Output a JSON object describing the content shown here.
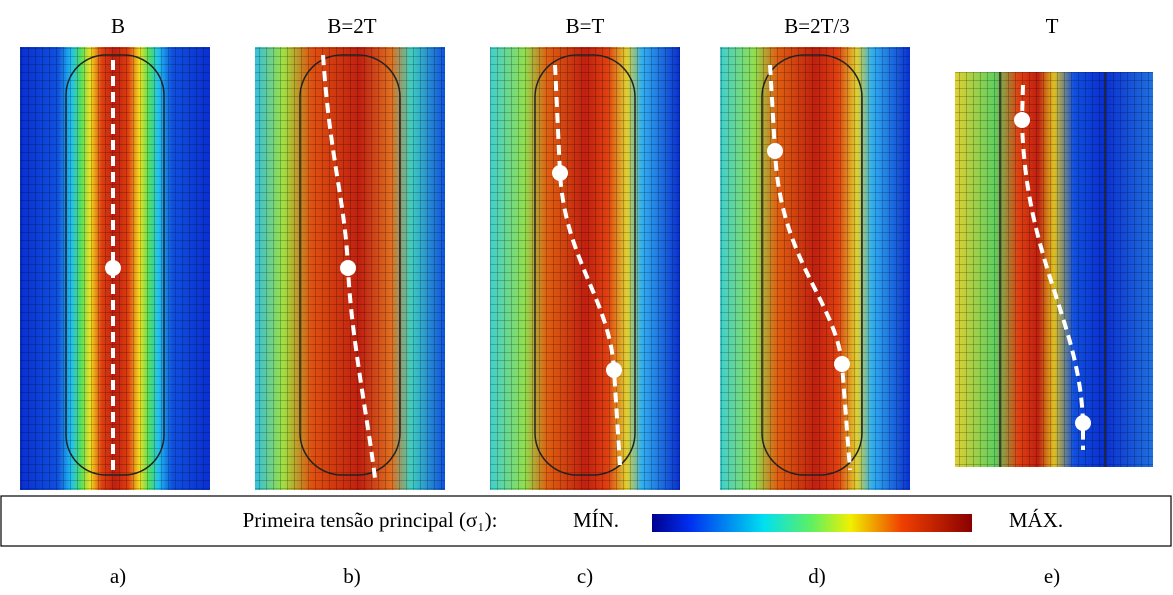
{
  "panels": [
    {
      "title": "B",
      "caption": "a)"
    },
    {
      "title": "B=2T",
      "caption": "b)"
    },
    {
      "title": "B=T",
      "caption": "c)"
    },
    {
      "title": "B=2T/3",
      "caption": "d)"
    },
    {
      "title": "T",
      "caption": "e)"
    }
  ],
  "legend": {
    "label": "Primeira tensão principal (σ₁):",
    "min": "MÍN.",
    "max": "MÁX."
  }
}
